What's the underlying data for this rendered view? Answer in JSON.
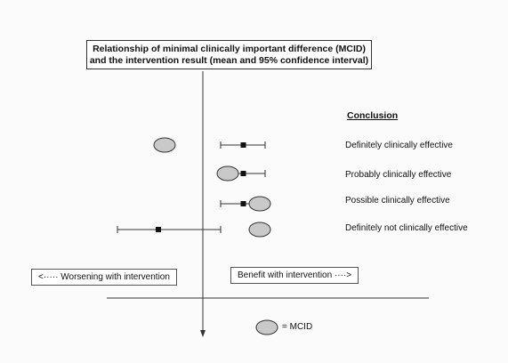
{
  "title": {
    "line1": "Relationship of minimal clinically important difference (MCID)",
    "line2": "and the intervention result (mean and 95% confidence interval)"
  },
  "conclusion": {
    "heading": "Conclusion",
    "rows": [
      {
        "label": "Definitely clinically effective",
        "mean": 0.455,
        "ci": [
          0.2,
          0.7
        ],
        "mcid": -0.43
      },
      {
        "label": "Probably clinically effective",
        "mean": 0.455,
        "ci": [
          0.2,
          0.7
        ],
        "mcid": 0.28
      },
      {
        "label": "Possible clinically effective",
        "mean": 0.455,
        "ci": [
          0.2,
          0.7
        ],
        "mcid": 0.64
      },
      {
        "label": "Definitely not clinically effective",
        "mean": -0.5,
        "ci": [
          -0.96,
          0.2
        ],
        "mcid": 0.64
      }
    ]
  },
  "arrows": {
    "worsening": "<····· Worsening with intervention",
    "benefit": "Benefit with intervention ····>"
  },
  "legend": {
    "label": "= MCID"
  },
  "colors": {
    "ellipse_fill": "#c9c9c9",
    "line": "#333333"
  }
}
